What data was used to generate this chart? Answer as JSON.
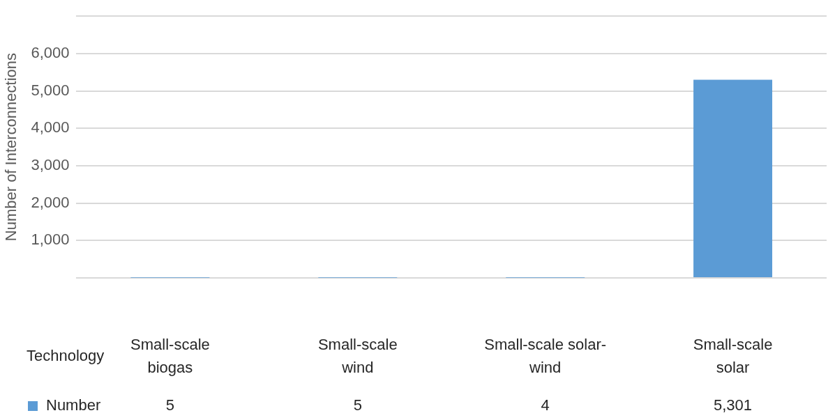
{
  "chart_data": {
    "type": "bar",
    "xlabel": "Technology",
    "ylabel": "Number of Interconnections",
    "categories": [
      "Small-scale biogas",
      "Small-scale wind",
      "Small-scale solar-wind",
      "Small-scale solar"
    ],
    "series": [
      {
        "name": "Number",
        "color": "#5b9bd5",
        "values": [
          5,
          5,
          4,
          5301
        ],
        "value_labels": [
          "5",
          "5",
          "4",
          "5,301"
        ]
      }
    ],
    "ylim": [
      0,
      7000
    ],
    "yticks": [
      {
        "value": 0,
        "label": null
      },
      {
        "value": 1000,
        "label": "1,000"
      },
      {
        "value": 2000,
        "label": "2,000"
      },
      {
        "value": 3000,
        "label": "3,000"
      },
      {
        "value": 4000,
        "label": "4,000"
      },
      {
        "value": 5000,
        "label": "5,000"
      },
      {
        "value": 6000,
        "label": "6,000"
      },
      {
        "value": 7000,
        "label": null
      }
    ],
    "grid": "y",
    "legend": "bottom left"
  }
}
